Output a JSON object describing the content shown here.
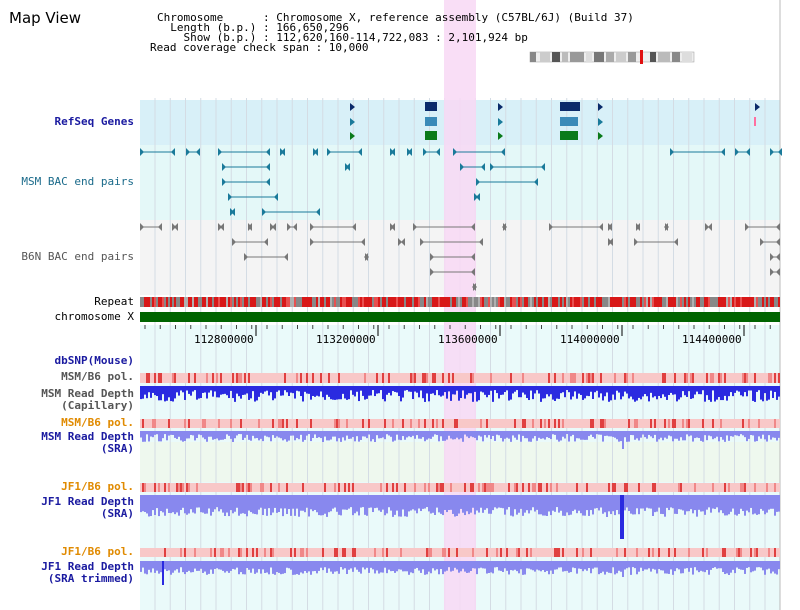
{
  "map_title": "Map View",
  "header": {
    "chromosome": "Chromosome      : Chromosome X, reference assembly (C57BL/6J) (Build 37)",
    "length": "  Length (b.p.) : 166,650,296",
    "show": "    Show (b.p.) : 112,620,160-114,722,083 : 2,101,924 bp",
    "coverage": "Read coverage check span : 10,000"
  },
  "tracks": {
    "refseq": "RefSeq Genes",
    "msm_bac": "MSM BAC end pairs",
    "b6n_bac": "B6N BAC end pairs",
    "repeat": "Repeat",
    "chromosome": "chromosome X",
    "dbsnp": "dbSNP(Mouse)",
    "msm_b6_pol_1": "MSM/B6 pol.",
    "msm_read_depth_cap": "MSM Read Depth\n(Capillary)",
    "msm_b6_pol_2": "MSM/B6 pol.",
    "msm_read_depth_sra": "MSM Read Depth\n(SRA)",
    "jf1_b6_pol_1": "JF1/B6 pol.",
    "jf1_read_depth_sra": "JF1 Read Depth\n(SRA)",
    "jf1_b6_pol_2": "JF1/B6 pol.",
    "jf1_read_depth_trim": "JF1 Read Depth\n(SRA trimmed)"
  },
  "axis_ticks": [
    "112800000",
    "113200000",
    "113600000",
    "114000000",
    "114400000"
  ],
  "colors": {
    "highlight": "#f8d8f4",
    "refseq_band": "#d8f0f8",
    "msm_band": "#e4f8f8",
    "b6n_band": "#f4f4f4",
    "chromosome_bar": "#006400",
    "teal_marker": "#1a7a9a",
    "navy_marker": "#0a2a6a",
    "green_marker": "#0a7a1a",
    "depth_blue": "#2a2ae0",
    "depth_light": "#8888ee",
    "pol_light": "#f8c8c8",
    "pol_red": "#e04040"
  }
}
